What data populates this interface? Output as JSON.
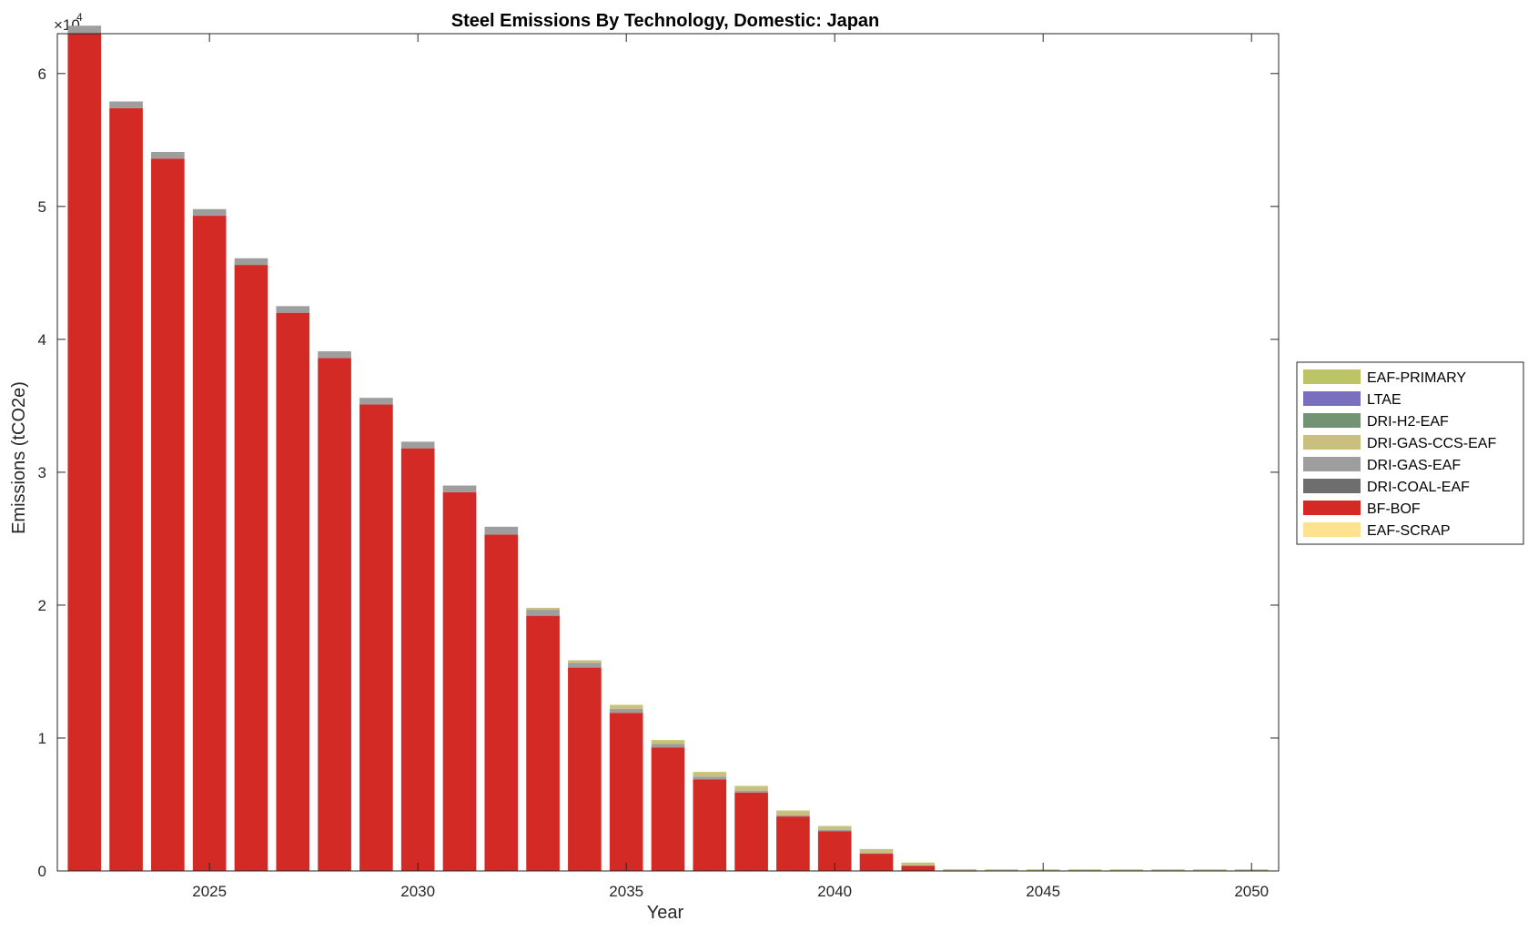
{
  "chart_data": {
    "type": "bar",
    "stacked": true,
    "title": "Steel Emissions By Technology, Domestic: Japan",
    "xlabel": "Year",
    "ylabel": "Emissions (tCO2e)",
    "y_exponent_base": "×10",
    "y_exponent_power": "4",
    "xlim": [
      2021.35,
      2050.65
    ],
    "ylim": [
      0,
      63000
    ],
    "x_ticks": [
      2025,
      2030,
      2035,
      2040,
      2045,
      2050
    ],
    "y_ticks": [
      0,
      10000,
      20000,
      30000,
      40000,
      50000,
      60000
    ],
    "y_tick_labels": [
      "0",
      "1",
      "2",
      "3",
      "4",
      "5",
      "6"
    ],
    "legend_position": "outside-right",
    "grid": false,
    "x": [
      2022,
      2023,
      2024,
      2025,
      2026,
      2027,
      2028,
      2029,
      2030,
      2031,
      2032,
      2033,
      2034,
      2035,
      2036,
      2037,
      2038,
      2039,
      2040,
      2041,
      2042,
      2043,
      2044,
      2045,
      2046,
      2047,
      2048,
      2049,
      2050
    ],
    "series": [
      {
        "name": "EAF-SCRAP",
        "color": "#fde38f",
        "values": [
          0,
          0,
          0,
          0,
          0,
          0,
          0,
          0,
          0,
          0,
          0,
          0,
          0,
          0,
          0,
          0,
          0,
          0,
          0,
          0,
          0,
          0,
          0,
          0,
          0,
          0,
          0,
          0,
          0
        ]
      },
      {
        "name": "BF-BOF",
        "color": "#d42a25",
        "values": [
          63000,
          57400,
          53600,
          49300,
          45600,
          42000,
          38600,
          35100,
          31800,
          28500,
          25300,
          19200,
          15300,
          11900,
          9300,
          6900,
          5900,
          4100,
          3000,
          1300,
          400,
          0,
          0,
          0,
          0,
          0,
          0,
          0,
          0
        ]
      },
      {
        "name": "DRI-COAL-EAF",
        "color": "#6e6e6e",
        "values": [
          0,
          0,
          0,
          0,
          0,
          0,
          0,
          0,
          0,
          0,
          0,
          0,
          0,
          0,
          0,
          0,
          0,
          0,
          0,
          0,
          0,
          0,
          0,
          0,
          0,
          0,
          0,
          0,
          0
        ]
      },
      {
        "name": "DRI-GAS-EAF",
        "color": "#9e9e9e",
        "values": [
          600,
          500,
          500,
          500,
          500,
          500,
          500,
          500,
          500,
          500,
          600,
          450,
          350,
          300,
          250,
          200,
          150,
          100,
          80,
          50,
          30,
          10,
          0,
          0,
          0,
          0,
          0,
          0,
          0
        ]
      },
      {
        "name": "DRI-GAS-CCS-EAF",
        "color": "#c9bf7f",
        "values": [
          0,
          0,
          0,
          0,
          0,
          0,
          0,
          0,
          0,
          0,
          0,
          150,
          200,
          250,
          250,
          300,
          300,
          300,
          250,
          250,
          150,
          80,
          70,
          70,
          70,
          70,
          70,
          70,
          70
        ]
      },
      {
        "name": "DRI-H2-EAF",
        "color": "#739374",
        "values": [
          0,
          0,
          0,
          0,
          0,
          0,
          0,
          0,
          0,
          0,
          0,
          0,
          0,
          0,
          0,
          0,
          0,
          0,
          0,
          0,
          0,
          0,
          0,
          0,
          0,
          0,
          0,
          0,
          0
        ]
      },
      {
        "name": "LTAE",
        "color": "#7a6fbf",
        "values": [
          0,
          0,
          0,
          0,
          0,
          0,
          0,
          0,
          0,
          0,
          0,
          0,
          0,
          0,
          0,
          0,
          0,
          0,
          0,
          0,
          0,
          0,
          0,
          0,
          0,
          0,
          0,
          0,
          0
        ]
      },
      {
        "name": "EAF-PRIMARY",
        "color": "#bcc466",
        "values": [
          0,
          0,
          0,
          0,
          0,
          0,
          0,
          0,
          0,
          0,
          0,
          0,
          0,
          50,
          50,
          50,
          50,
          50,
          50,
          50,
          50,
          50,
          50,
          50,
          50,
          50,
          50,
          50,
          50
        ]
      }
    ],
    "legend_order": [
      "EAF-PRIMARY",
      "LTAE",
      "DRI-H2-EAF",
      "DRI-GAS-CCS-EAF",
      "DRI-GAS-EAF",
      "DRI-COAL-EAF",
      "BF-BOF",
      "EAF-SCRAP"
    ]
  }
}
